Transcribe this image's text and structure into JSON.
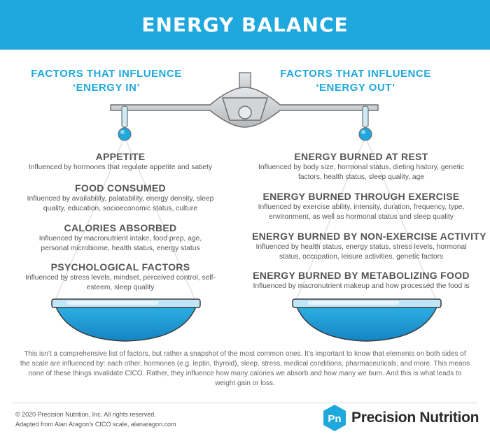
{
  "header": {
    "title": "ENERGY BALANCE"
  },
  "left": {
    "title_line1": "FACTORS THAT INFLUENCE",
    "title_line2": "‘ENERGY IN’",
    "factors": [
      {
        "title": "APPETITE",
        "desc": "Influenced by hormones that regulate appetite and satiety"
      },
      {
        "title": "FOOD CONSUMED",
        "desc": "Influenced by availability, palatability, energy density, sleep quality, education, socioeconomic status, culture"
      },
      {
        "title": "CALORIES ABSORBED",
        "desc": "Influenced by macronutrient intake, food prep, age, personal microbiome, health status, energy status"
      },
      {
        "title": "PSYCHOLOGICAL FACTORS",
        "desc": "Influenced by stress levels, mindset, perceived control, self-esteem, sleep quality"
      }
    ]
  },
  "right": {
    "title_line1": "FACTORS THAT INFLUENCE",
    "title_line2": "‘ENERGY OUT’",
    "factors": [
      {
        "title": "ENERGY BURNED AT REST",
        "desc": "Influenced by body size, hormonal status, dieting history, genetic factors, health status, sleep quality, age"
      },
      {
        "title": "ENERGY BURNED THROUGH EXERCISE",
        "desc": "Influenced by exercise ability, intensity, duration, frequency, type, environment, as well as hormonal status and sleep quality"
      },
      {
        "title": "ENERGY BURNED BY NON-EXERCISE ACTIVITY",
        "desc": "Influenced by health status, energy status, stress levels, hormonal status, occupation, leisure activities, genetic factors"
      },
      {
        "title": "ENERGY BURNED BY METABOLIZING FOOD",
        "desc": "Influenced by macronutrient makeup and how processed the food is"
      }
    ]
  },
  "footnote": "This isn’t a comprehensive list of factors, but rather a snapshot of the most common ones. It’s important to know that elements on both sides of the scale are influenced by: each other, hormones (e.g. leptin, thyroid), sleep, stress, medical conditions, pharmaceuticals, and more. This means none of these things invalidate CICO. Rather, they influence how many calories we absorb and how many we burn. And this is what leads to weight gain or loss.",
  "footer": {
    "copyright": "© 2020 Precision Nutrition, Inc. All rights reserved.",
    "adapted": "Adapted from Alan Aragon’s CICO scale, alanaragon.com",
    "logo_mark": "Pn",
    "logo_text": "Precision Nutrition"
  },
  "colors": {
    "brand_blue": "#1fa8dd",
    "scale_grey": "#c8c9cb",
    "text_grey": "#555555"
  }
}
